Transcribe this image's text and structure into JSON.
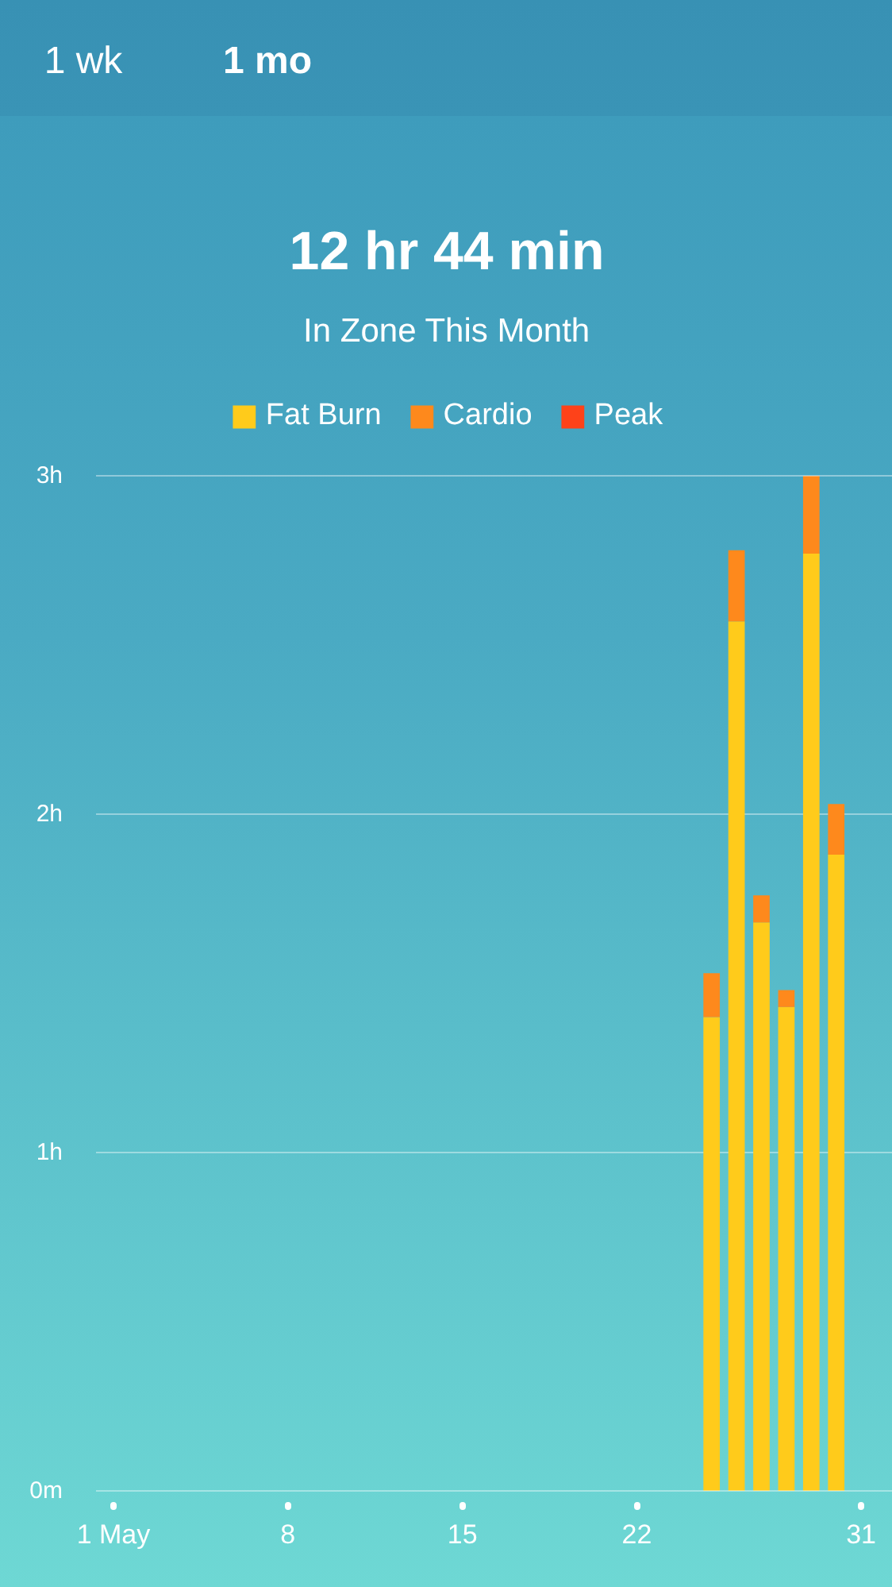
{
  "chart_data": {
    "type": "bar",
    "title": "12 hr 44 min",
    "subtitle": "In Zone This Month",
    "annotations": [
      "1 wk",
      "1 mo"
    ],
    "categories": [
      "1 May",
      null,
      null,
      null,
      null,
      null,
      null,
      "8",
      null,
      null,
      null,
      null,
      null,
      null,
      "15",
      null,
      null,
      null,
      null,
      null,
      null,
      "22",
      null,
      null,
      null,
      null,
      null,
      null,
      null,
      null,
      "31"
    ],
    "series": [
      {
        "name": "Fat Burn",
        "color": "#ffcb1b",
        "values": [
          null,
          null,
          null,
          null,
          null,
          null,
          null,
          null,
          null,
          null,
          null,
          null,
          null,
          null,
          null,
          null,
          null,
          null,
          null,
          null,
          null,
          null,
          null,
          null,
          1.4,
          2.57,
          1.68,
          1.43,
          2.77,
          1.88,
          null
        ]
      },
      {
        "name": "Cardio",
        "color": "#fe891c",
        "values": [
          null,
          null,
          null,
          null,
          null,
          null,
          null,
          null,
          null,
          null,
          null,
          null,
          null,
          null,
          null,
          null,
          null,
          null,
          null,
          null,
          null,
          null,
          null,
          null,
          0.13,
          0.21,
          0.08,
          0.05,
          0.23,
          0.15,
          null
        ]
      },
      {
        "name": "Peak",
        "color": "#fe4219",
        "values": [
          null,
          null,
          null,
          null,
          null,
          null,
          null,
          null,
          null,
          null,
          null,
          null,
          null,
          null,
          null,
          null,
          null,
          null,
          null,
          null,
          null,
          null,
          null,
          null,
          0,
          0,
          0,
          0,
          0,
          0,
          null
        ]
      }
    ],
    "stacked": true,
    "ylim": [
      0,
      3
    ],
    "yticks": [
      {
        "value": 0,
        "label": "0m"
      },
      {
        "value": 1,
        "label": "1h"
      },
      {
        "value": 2,
        "label": "2h"
      },
      {
        "value": 3,
        "label": "3h"
      }
    ],
    "grid": "y",
    "legend": "top"
  }
}
